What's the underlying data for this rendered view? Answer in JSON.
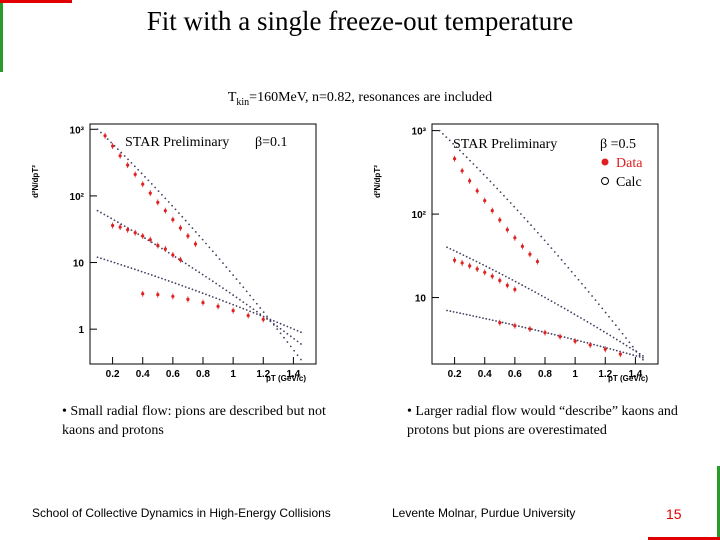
{
  "slide": {
    "title": "Fit with a single freeze-out temperature",
    "subtitle_pre": "T",
    "subtitle_sub": "kin",
    "subtitle_post": "=160MeV, n=0.82, resonances are included",
    "footer_left": "School of Collective Dynamics in High-Energy Collisions",
    "footer_center": "Levente Molnar, Purdue University",
    "page_number": "15",
    "bullet_left": "• Small radial flow: pions are described but not kaons and protons",
    "bullet_right": "• Larger radial flow would “describe” kaons and protons but pions are overestimated",
    "colors": {
      "data": "#e02020",
      "calc": "#404060",
      "accent_green": "#2a9a2a",
      "accent_red": "#e00000"
    }
  },
  "chart_data": [
    {
      "type": "scatter",
      "title": "STAR Preliminary",
      "annotation": "β=0.1",
      "xlabel": "pT (GeV/c)",
      "ylabel": "d²N/dpT²",
      "xlim": [
        0.05,
        1.55
      ],
      "ylog": true,
      "ylim": [
        0.3,
        1200
      ],
      "xticks": [
        "0.2",
        "0.4",
        "0.6",
        "0.8",
        "1",
        "1.2",
        "1.4"
      ],
      "xtick_values": [
        0.2,
        0.4,
        0.6,
        0.8,
        1.0,
        1.2,
        1.4
      ],
      "yticks": [
        "1",
        "10",
        "10²",
        "10³"
      ],
      "ytick_values": [
        1,
        10,
        100,
        1000
      ],
      "series": [
        {
          "name": "pion calc",
          "kind": "calc",
          "x0": 0.1,
          "x1": 1.45,
          "y0": 1000,
          "y1": 0.35
        },
        {
          "name": "kaon calc",
          "kind": "calc",
          "x0": 0.1,
          "x1": 1.45,
          "y0": 60,
          "y1": 0.6
        },
        {
          "name": "proton calc",
          "kind": "calc",
          "x0": 0.1,
          "x1": 1.45,
          "y0": 12,
          "y1": 0.9
        },
        {
          "name": "pion data",
          "kind": "data",
          "x": [
            0.15,
            0.2,
            0.25,
            0.3,
            0.35,
            0.4,
            0.45,
            0.5,
            0.55,
            0.6,
            0.65,
            0.7,
            0.75
          ],
          "y": [
            800,
            560,
            400,
            290,
            210,
            150,
            110,
            80,
            60,
            44,
            33,
            25,
            19
          ]
        },
        {
          "name": "kaon data",
          "kind": "data",
          "x": [
            0.2,
            0.25,
            0.3,
            0.35,
            0.4,
            0.45,
            0.5,
            0.55,
            0.6,
            0.65
          ],
          "y": [
            36,
            34,
            31,
            28,
            25,
            22,
            18,
            16,
            13,
            11
          ]
        },
        {
          "name": "proton data",
          "kind": "data",
          "x": [
            0.4,
            0.5,
            0.6,
            0.7,
            0.8,
            0.9,
            1.0,
            1.1,
            1.2
          ],
          "y": [
            3.4,
            3.3,
            3.1,
            2.8,
            2.5,
            2.2,
            1.9,
            1.6,
            1.4
          ]
        }
      ]
    },
    {
      "type": "scatter",
      "title": "STAR Preliminary",
      "xlabel": "pT (GeV/c)",
      "ylabel": "d²N/dpT²",
      "xlim": [
        0.05,
        1.55
      ],
      "ylog": true,
      "ylim": [
        1.6,
        1200
      ],
      "xticks": [
        "0.2",
        "0.4",
        "0.6",
        "0.8",
        "1",
        "1.2",
        "1.4"
      ],
      "xtick_values": [
        0.2,
        0.4,
        0.6,
        0.8,
        1.0,
        1.2,
        1.4
      ],
      "yticks": [
        "10",
        "10²",
        "10³"
      ],
      "ytick_values": [
        10,
        100,
        1000
      ],
      "legend": {
        "line1": "β =0.5",
        "data": "Data",
        "calc": "Calc"
      },
      "series": [
        {
          "name": "pion calc",
          "kind": "calc",
          "x0": 0.1,
          "x1": 1.45,
          "y0": 1000,
          "y1": 1.8
        },
        {
          "name": "kaon calc",
          "kind": "calc",
          "x0": 0.15,
          "x1": 1.45,
          "y0": 40,
          "y1": 2.0
        },
        {
          "name": "proton calc",
          "kind": "calc",
          "x0": 0.15,
          "x1": 1.45,
          "y0": 7,
          "y1": 1.9
        },
        {
          "name": "pion data",
          "kind": "data",
          "x": [
            0.2,
            0.25,
            0.3,
            0.35,
            0.4,
            0.45,
            0.5,
            0.55,
            0.6,
            0.65,
            0.7,
            0.75
          ],
          "y": [
            460,
            330,
            250,
            190,
            145,
            110,
            85,
            65,
            52,
            41,
            33,
            27
          ]
        },
        {
          "name": "kaon data",
          "kind": "data",
          "x": [
            0.2,
            0.25,
            0.3,
            0.35,
            0.4,
            0.45,
            0.5,
            0.55,
            0.6
          ],
          "y": [
            28,
            26,
            24,
            22,
            20,
            18,
            16,
            14,
            12.5
          ]
        },
        {
          "name": "proton data",
          "kind": "data",
          "x": [
            0.5,
            0.6,
            0.7,
            0.8,
            0.9,
            1.0,
            1.1,
            1.2,
            1.3
          ],
          "y": [
            5.0,
            4.6,
            4.2,
            3.8,
            3.4,
            3.0,
            2.7,
            2.4,
            2.1
          ]
        }
      ]
    }
  ]
}
